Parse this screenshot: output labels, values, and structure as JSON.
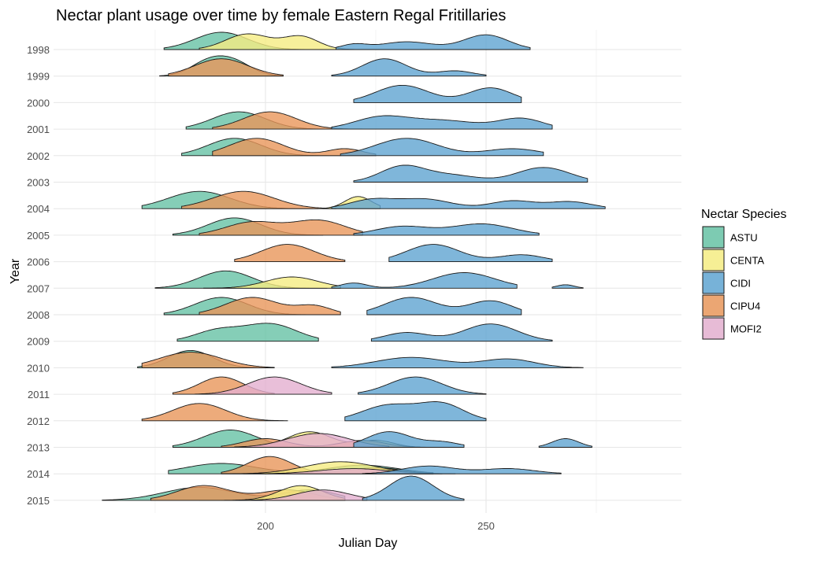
{
  "chart_data": {
    "type": "ridgeline",
    "title": "Nectar plant usage over time by female Eastern Regal Fritillaries",
    "xlabel": "Julian Day",
    "ylabel": "Year",
    "xlim": [
      157,
      277
    ],
    "x_ticks": [
      200,
      250
    ],
    "grid": true,
    "legend": {
      "title": "Nectar Species",
      "position": "right",
      "items": [
        {
          "label": "ASTU",
          "color": "#66C2A5"
        },
        {
          "label": "CENTA",
          "color": "#F5EC82"
        },
        {
          "label": "CIDI",
          "color": "#5FA4D1"
        },
        {
          "label": "CIPU4",
          "color": "#E8965A"
        },
        {
          "label": "MOFI2",
          "color": "#E3AFCF"
        }
      ]
    },
    "years": [
      "1998",
      "1999",
      "2000",
      "2001",
      "2002",
      "2003",
      "2004",
      "2005",
      "2006",
      "2007",
      "2008",
      "2009",
      "2010",
      "2011",
      "2012",
      "2013",
      "2014",
      "2015"
    ],
    "densities": [
      {
        "year": "1998",
        "species": "ASTU",
        "range": [
          177,
          220
        ],
        "peaks": [
          [
            190,
            6,
            1
          ]
        ]
      },
      {
        "year": "1998",
        "species": "CENTA",
        "range": [
          185,
          222
        ],
        "peaks": [
          [
            196,
            5,
            0.9
          ],
          [
            208,
            4,
            0.75
          ]
        ]
      },
      {
        "year": "1998",
        "species": "CIDI",
        "range": [
          216,
          260
        ],
        "peaks": [
          [
            220,
            3,
            0.28
          ],
          [
            232,
            6,
            0.45
          ],
          [
            250,
            5,
            0.85
          ]
        ]
      },
      {
        "year": "1999",
        "species": "ASTU",
        "range": [
          176,
          204
        ],
        "peaks": [
          [
            187,
            4,
            0.8
          ],
          [
            193,
            4,
            0.75
          ]
        ]
      },
      {
        "year": "1999",
        "species": "CIPU4",
        "range": [
          178,
          204
        ],
        "peaks": [
          [
            190,
            6,
            1
          ]
        ]
      },
      {
        "year": "1999",
        "species": "CIDI",
        "range": [
          215,
          250
        ],
        "peaks": [
          [
            227,
            5,
            1
          ],
          [
            243,
            4,
            0.3
          ]
        ]
      },
      {
        "year": "2000",
        "species": "CIDI",
        "range": [
          220,
          258
        ],
        "peaks": [
          [
            231,
            6,
            1
          ],
          [
            251,
            5,
            0.85
          ]
        ]
      },
      {
        "year": "2001",
        "species": "ASTU",
        "range": [
          182,
          214
        ],
        "peaks": [
          [
            194,
            6,
            1
          ]
        ]
      },
      {
        "year": "2001",
        "species": "CIPU4",
        "range": [
          188,
          222
        ],
        "peaks": [
          [
            201,
            6,
            1
          ]
        ]
      },
      {
        "year": "2001",
        "species": "CIDI",
        "range": [
          215,
          265
        ],
        "peaks": [
          [
            226,
            6,
            0.65
          ],
          [
            240,
            8,
            0.5
          ],
          [
            258,
            5,
            0.6
          ]
        ]
      },
      {
        "year": "2002",
        "species": "ASTU",
        "range": [
          181,
          217
        ],
        "peaks": [
          [
            193,
            6,
            1
          ]
        ]
      },
      {
        "year": "2002",
        "species": "CIPU4",
        "range": [
          188,
          225
        ],
        "peaks": [
          [
            198,
            6,
            1
          ],
          [
            218,
            4,
            0.4
          ]
        ]
      },
      {
        "year": "2002",
        "species": "CIDI",
        "range": [
          217,
          263
        ],
        "peaks": [
          [
            232,
            7,
            1
          ],
          [
            256,
            6,
            0.4
          ]
        ]
      },
      {
        "year": "2003",
        "species": "CIDI",
        "range": [
          220,
          273
        ],
        "peaks": [
          [
            231,
            5,
            0.9
          ],
          [
            242,
            6,
            0.4
          ],
          [
            263,
            6,
            0.85
          ]
        ]
      },
      {
        "year": "2004",
        "species": "ASTU",
        "range": [
          172,
          212
        ],
        "peaks": [
          [
            185,
            7,
            1
          ]
        ]
      },
      {
        "year": "2004",
        "species": "CIPU4",
        "range": [
          181,
          216
        ],
        "peaks": [
          [
            195,
            7,
            1
          ]
        ]
      },
      {
        "year": "2004",
        "species": "CENTA",
        "range": [
          213,
          226
        ],
        "peaks": [
          [
            221,
            3,
            0.7
          ]
        ]
      },
      {
        "year": "2004",
        "species": "CIDI",
        "range": [
          215,
          277
        ],
        "peaks": [
          [
            224,
            5,
            0.5
          ],
          [
            236,
            6,
            0.55
          ],
          [
            256,
            5,
            0.45
          ],
          [
            269,
            5,
            0.4
          ]
        ]
      },
      {
        "year": "2005",
        "species": "ASTU",
        "range": [
          179,
          213
        ],
        "peaks": [
          [
            193,
            6,
            1
          ]
        ]
      },
      {
        "year": "2005",
        "species": "CIPU4",
        "range": [
          185,
          222
        ],
        "peaks": [
          [
            197,
            6,
            0.75
          ],
          [
            212,
            6,
            0.85
          ]
        ]
      },
      {
        "year": "2005",
        "species": "CIDI",
        "range": [
          220,
          262
        ],
        "peaks": [
          [
            231,
            6,
            0.5
          ],
          [
            249,
            7,
            0.65
          ]
        ]
      },
      {
        "year": "2006",
        "species": "CIPU4",
        "range": [
          193,
          218
        ],
        "peaks": [
          [
            205,
            6,
            1
          ]
        ]
      },
      {
        "year": "2006",
        "species": "CIDI",
        "range": [
          228,
          265
        ],
        "peaks": [
          [
            238,
            6,
            1
          ],
          [
            258,
            5,
            0.4
          ]
        ]
      },
      {
        "year": "2007",
        "species": "ASTU",
        "range": [
          175,
          214
        ],
        "peaks": [
          [
            191,
            6,
            1
          ]
        ]
      },
      {
        "year": "2007",
        "species": "CENTA",
        "range": [
          186,
          217
        ],
        "peaks": [
          [
            206,
            6,
            0.65
          ]
        ]
      },
      {
        "year": "2007",
        "species": "CIDI",
        "range": [
          215,
          257
        ],
        "peaks": [
          [
            220,
            3,
            0.3
          ],
          [
            245,
            7,
            0.9
          ]
        ]
      },
      {
        "year": "2007",
        "species": "CIDI",
        "range": [
          265,
          272
        ],
        "peaks": [
          [
            268,
            2,
            0.2
          ]
        ]
      },
      {
        "year": "2008",
        "species": "ASTU",
        "range": [
          177,
          212
        ],
        "peaks": [
          [
            190,
            6,
            1
          ]
        ]
      },
      {
        "year": "2008",
        "species": "CIPU4",
        "range": [
          185,
          217
        ],
        "peaks": [
          [
            197,
            6,
            1
          ],
          [
            211,
            4,
            0.5
          ]
        ]
      },
      {
        "year": "2008",
        "species": "CIDI",
        "range": [
          223,
          258
        ],
        "peaks": [
          [
            233,
            6,
            1
          ],
          [
            251,
            5,
            0.8
          ]
        ]
      },
      {
        "year": "2009",
        "species": "ASTU",
        "range": [
          180,
          212
        ],
        "peaks": [
          [
            189,
            5,
            0.6
          ],
          [
            201,
            6,
            1
          ]
        ]
      },
      {
        "year": "2009",
        "species": "CIDI",
        "range": [
          224,
          265
        ],
        "peaks": [
          [
            232,
            5,
            0.5
          ],
          [
            251,
            6,
            1
          ]
        ]
      },
      {
        "year": "2010",
        "species": "ASTU",
        "range": [
          171,
          202
        ],
        "peaks": [
          [
            183,
            5,
            1
          ]
        ]
      },
      {
        "year": "2010",
        "species": "CIPU4",
        "range": [
          172,
          202
        ],
        "peaks": [
          [
            183,
            7,
            0.9
          ]
        ]
      },
      {
        "year": "2010",
        "species": "CIDI",
        "range": [
          215,
          272
        ],
        "peaks": [
          [
            233,
            8,
            0.6
          ],
          [
            255,
            6,
            0.5
          ]
        ]
      },
      {
        "year": "2011",
        "species": "CIPU4",
        "range": [
          179,
          202
        ],
        "peaks": [
          [
            190,
            5,
            1
          ]
        ]
      },
      {
        "year": "2011",
        "species": "MOFI2",
        "range": [
          184,
          215
        ],
        "peaks": [
          [
            202,
            6,
            1
          ]
        ]
      },
      {
        "year": "2011",
        "species": "CIDI",
        "range": [
          221,
          250
        ],
        "peaks": [
          [
            234,
            6,
            1
          ]
        ]
      },
      {
        "year": "2012",
        "species": "CIPU4",
        "range": [
          172,
          205
        ],
        "peaks": [
          [
            185,
            6,
            1
          ]
        ]
      },
      {
        "year": "2012",
        "species": "CIDI",
        "range": [
          218,
          250
        ],
        "peaks": [
          [
            228,
            6,
            0.9
          ],
          [
            240,
            5,
            0.95
          ]
        ]
      },
      {
        "year": "2013",
        "species": "ASTU",
        "range": [
          179,
          205
        ],
        "peaks": [
          [
            192,
            6,
            1
          ]
        ]
      },
      {
        "year": "2013",
        "species": "CENTA",
        "range": [
          185,
          235
        ],
        "peaks": [
          [
            210,
            5,
            0.9
          ],
          [
            225,
            4,
            0.4
          ]
        ]
      },
      {
        "year": "2013",
        "species": "CIPU4",
        "range": [
          190,
          237
        ],
        "peaks": [
          [
            200,
            5,
            0.5
          ],
          [
            222,
            5,
            0.4
          ]
        ]
      },
      {
        "year": "2013",
        "species": "MOFI2",
        "range": [
          193,
          228
        ],
        "peaks": [
          [
            212,
            7,
            0.8
          ]
        ]
      },
      {
        "year": "2013",
        "species": "CIDI",
        "range": [
          220,
          245
        ],
        "peaks": [
          [
            228,
            5,
            0.9
          ],
          [
            240,
            4,
            0.3
          ]
        ]
      },
      {
        "year": "2013",
        "species": "CIDI",
        "range": [
          262,
          274
        ],
        "peaks": [
          [
            268,
            3,
            0.5
          ]
        ]
      },
      {
        "year": "2014",
        "species": "ASTU",
        "range": [
          178,
          238
        ],
        "peaks": [
          [
            190,
            8,
            0.6
          ],
          [
            222,
            8,
            0.5
          ]
        ]
      },
      {
        "year": "2014",
        "species": "CIPU4",
        "range": [
          190,
          238
        ],
        "peaks": [
          [
            201,
            5,
            1
          ],
          [
            225,
            6,
            0.35
          ]
        ]
      },
      {
        "year": "2014",
        "species": "CENTA",
        "range": [
          190,
          240
        ],
        "peaks": [
          [
            217,
            8,
            0.7
          ]
        ]
      },
      {
        "year": "2014",
        "species": "MOFI2",
        "range": [
          195,
          243
        ],
        "peaks": [
          [
            220,
            8,
            0.3
          ]
        ]
      },
      {
        "year": "2014",
        "species": "CIDI",
        "range": [
          222,
          267
        ],
        "peaks": [
          [
            237,
            6,
            0.45
          ],
          [
            255,
            6,
            0.3
          ]
        ]
      },
      {
        "year": "2015",
        "species": "ASTU",
        "range": [
          163,
          218
        ],
        "peaks": [
          [
            185,
            8,
            0.75
          ],
          [
            210,
            6,
            0.6
          ]
        ]
      },
      {
        "year": "2015",
        "species": "CIPU4",
        "range": [
          174,
          218
        ],
        "peaks": [
          [
            186,
            6,
            0.85
          ],
          [
            205,
            6,
            0.6
          ]
        ]
      },
      {
        "year": "2015",
        "species": "CENTA",
        "range": [
          185,
          218
        ],
        "peaks": [
          [
            208,
            5,
            0.85
          ]
        ]
      },
      {
        "year": "2015",
        "species": "MOFI2",
        "range": [
          190,
          223
        ],
        "peaks": [
          [
            213,
            6,
            0.6
          ]
        ]
      },
      {
        "year": "2015",
        "species": "CIDI",
        "range": [
          222,
          245
        ],
        "peaks": [
          [
            233,
            5,
            1.4
          ]
        ]
      }
    ]
  }
}
